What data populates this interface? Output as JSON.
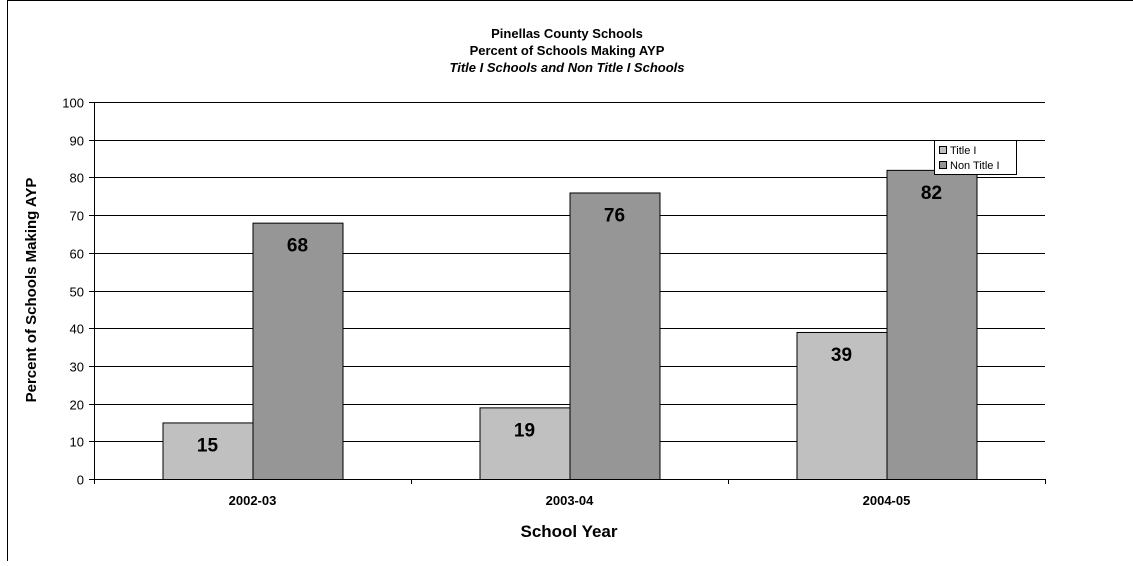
{
  "chart_data": {
    "type": "bar",
    "title": "Pinellas County Schools",
    "subtitle": "Percent of Schools Making AYP",
    "subtitle2": "Title I Schools and Non Title I Schools",
    "xlabel": "School Year",
    "ylabel": "Percent of Schools Making AYP",
    "categories": [
      "2002-03",
      "2003-04",
      "2004-05"
    ],
    "series": [
      {
        "name": "Title I",
        "values": [
          15,
          19,
          39
        ],
        "labels": [
          "15",
          "19",
          "39"
        ],
        "color": "#c0c0c0"
      },
      {
        "name": "Non Title I",
        "values": [
          68,
          76,
          82
        ],
        "labels": [
          "68",
          "76",
          "82"
        ],
        "color": "#969696"
      }
    ],
    "ylim": [
      0,
      100
    ],
    "yticks": [
      0,
      10,
      20,
      30,
      40,
      50,
      60,
      70,
      80,
      90,
      100
    ],
    "grid": true,
    "legend_position": "top-right"
  }
}
